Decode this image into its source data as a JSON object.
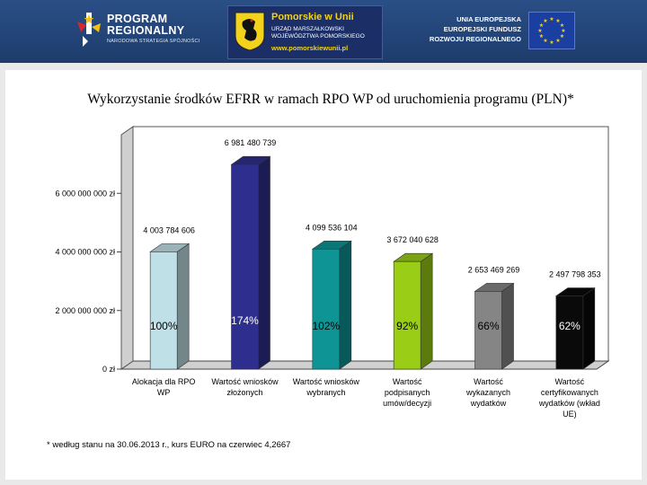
{
  "header": {
    "logo_left": {
      "line1": "PROGRAM",
      "line2": "REGIONALNY",
      "subtitle": "NARODOWA STRATEGIA SPÓJNOŚCI"
    },
    "logo_center": {
      "title": "Pomorskie w Unii",
      "line1": "URZĄD MARSZAŁKOWSKI",
      "line2": "WOJEWÓDZTWA POMORSKIEGO",
      "url": "www.pomorskiewunii.pl"
    },
    "logo_right": {
      "line1": "UNIA EUROPEJSKA",
      "line2": "EUROPEJSKI FUNDUSZ",
      "line3": "ROZWOJU REGIONALNEGO"
    }
  },
  "chart_data": {
    "type": "bar",
    "title": "Wykorzystanie środków EFRR w ramach RPO WP od uruchomienia programu (PLN)*",
    "xlabel": "",
    "ylabel": "",
    "ylim": [
      0,
      8000000000
    ],
    "yticks": [
      {
        "value": 0,
        "label": "0 zł"
      },
      {
        "value": 2000000000,
        "label": "2 000 000 000 zł"
      },
      {
        "value": 4000000000,
        "label": "4 000 000 000 zł"
      },
      {
        "value": 6000000000,
        "label": "6 000 000 000 zł"
      }
    ],
    "categories": [
      [
        "Alokacja dla RPO",
        "WP"
      ],
      [
        "Wartość wniosków",
        "złożonych"
      ],
      [
        "Wartość wniosków",
        "wybranych"
      ],
      [
        "Wartość",
        "podpisanych",
        "umów/decyzji"
      ],
      [
        "Wartość",
        "wykazanych",
        "wydatków"
      ],
      [
        "Wartość",
        "certyfikowanych",
        "wydatków (wkład",
        "UE)"
      ]
    ],
    "values": [
      4003784606,
      6981480739,
      4099536104,
      3672040628,
      2653469269,
      2497798353
    ],
    "value_labels": [
      "4 003 784 606",
      "6 981 480 739",
      "4 099 536 104",
      "3 672 040 628",
      "2 653 469 269",
      "2 497 798 353"
    ],
    "percent_labels": [
      "100%",
      "174%",
      "102%",
      "92%",
      "66%",
      "62%"
    ],
    "colors": [
      "#bfe0e6",
      "#2e2e8e",
      "#0e9494",
      "#9acd16",
      "#858585",
      "#0a0a0a"
    ],
    "grid": false,
    "legend": "none"
  },
  "footnote": "* według stanu na 30.06.2013 r., kurs EURO na czerwiec 4,2667"
}
